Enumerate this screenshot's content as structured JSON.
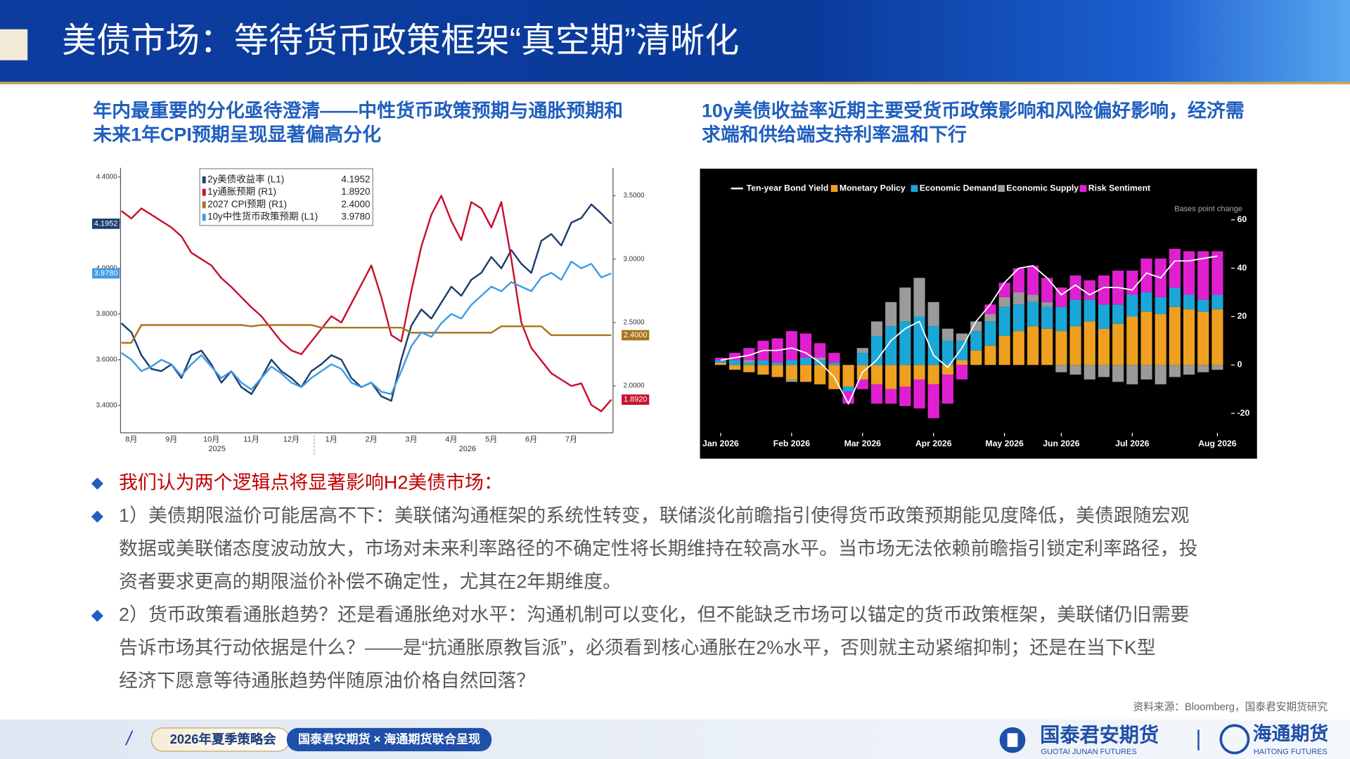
{
  "header": {
    "title": "美债市场：等待货币政策框架“真空期”清晰化"
  },
  "chart_data": [
    {
      "type": "line",
      "title": [
        "年内最重要的分化亟待澄清——中性货币政策预期与通胀预期和",
        "未来1年CPI预期呈现显著偏高分化"
      ],
      "categories": [
        null,
        "8月",
        null,
        null,
        null,
        "9月",
        null,
        null,
        null,
        "10月",
        null,
        null,
        null,
        "11月",
        null,
        null,
        null,
        "12月",
        null,
        null,
        null,
        "1月",
        null,
        null,
        null,
        "2月",
        null,
        null,
        null,
        "3月",
        null,
        null,
        null,
        "4月",
        null,
        null,
        null,
        "5月",
        null,
        null,
        null,
        "6月",
        null,
        null,
        null,
        "7月",
        null,
        null,
        null,
        null
      ],
      "year_labels": [
        "2025",
        "2026"
      ],
      "ylim": [
        3.28,
        4.44
      ],
      "yticks": [
        {
          "value": 3.4,
          "label": "3.4000"
        },
        {
          "value": 3.6,
          "label": "3.6000"
        },
        {
          "value": 3.8,
          "label": "3.8000"
        },
        {
          "value": 4.0,
          "label": "4.0000"
        },
        {
          "value": 4.2,
          "label": "4.2000"
        },
        {
          "value": 4.4,
          "label": "4.4000"
        }
      ],
      "y2lim": [
        1.63,
        3.72
      ],
      "y2ticks": [
        {
          "value": 2.0,
          "label": "2.0000"
        },
        {
          "value": 2.5,
          "label": "2.5000"
        },
        {
          "value": 3.0,
          "label": "3.0000"
        },
        {
          "value": 3.5,
          "label": "3.5000"
        }
      ],
      "series": [
        {
          "name": "2y美债收益率 (L1)",
          "color": "#1b3f6e",
          "axis": "y",
          "last_value_label": "4.1952",
          "values": [
            3.76,
            3.72,
            3.62,
            3.56,
            3.55,
            3.58,
            3.52,
            3.62,
            3.64,
            3.58,
            3.5,
            3.55,
            3.48,
            3.45,
            3.52,
            3.6,
            3.55,
            3.52,
            3.48,
            3.55,
            3.58,
            3.62,
            3.6,
            3.52,
            3.48,
            3.5,
            3.44,
            3.42,
            3.6,
            3.75,
            3.82,
            3.78,
            3.85,
            3.92,
            3.88,
            3.95,
            3.98,
            4.05,
            4.0,
            4.08,
            4.02,
            3.98,
            4.12,
            4.15,
            4.1,
            4.2,
            4.22,
            4.28,
            4.24,
            4.1952
          ]
        },
        {
          "name": "1y通胀预期 (R1)",
          "color": "#c8102e",
          "axis": "y2",
          "last_value_label": "1.8920",
          "values": [
            3.38,
            3.32,
            3.4,
            3.35,
            3.3,
            3.25,
            3.18,
            3.05,
            3.0,
            2.95,
            2.85,
            2.78,
            2.7,
            2.62,
            2.55,
            2.45,
            2.35,
            2.28,
            2.25,
            2.35,
            2.45,
            2.55,
            2.5,
            2.65,
            2.8,
            2.95,
            2.7,
            2.4,
            2.35,
            2.75,
            3.1,
            3.35,
            3.5,
            3.3,
            3.15,
            3.45,
            3.4,
            3.25,
            3.45,
            3.0,
            2.5,
            2.3,
            2.2,
            2.1,
            2.05,
            2.0,
            2.02,
            1.85,
            1.8,
            1.892
          ]
        },
        {
          "name": "2027 CPI预期 (R1)",
          "color": "#a8741a",
          "axis": "y2",
          "last_value_label": "2.4000",
          "values": [
            2.34,
            2.34,
            2.48,
            2.48,
            2.48,
            2.48,
            2.48,
            2.48,
            2.48,
            2.48,
            2.48,
            2.48,
            2.48,
            2.47,
            2.48,
            2.48,
            2.48,
            2.48,
            2.48,
            2.48,
            2.46,
            2.46,
            2.46,
            2.46,
            2.46,
            2.46,
            2.46,
            2.46,
            2.46,
            2.42,
            2.42,
            2.42,
            2.42,
            2.42,
            2.42,
            2.42,
            2.42,
            2.42,
            2.47,
            2.47,
            2.47,
            2.47,
            2.47,
            2.4,
            2.4,
            2.4,
            2.4,
            2.4,
            2.4,
            2.4
          ]
        },
        {
          "name": "10y中性货币政策预期 (L1)",
          "color": "#3f9be6",
          "axis": "y",
          "last_value_label": "3.9780",
          "values": [
            3.63,
            3.6,
            3.55,
            3.57,
            3.6,
            3.58,
            3.53,
            3.58,
            3.62,
            3.57,
            3.52,
            3.55,
            3.5,
            3.47,
            3.52,
            3.57,
            3.54,
            3.5,
            3.48,
            3.52,
            3.55,
            3.58,
            3.56,
            3.5,
            3.48,
            3.5,
            3.46,
            3.45,
            3.55,
            3.66,
            3.72,
            3.7,
            3.76,
            3.8,
            3.78,
            3.84,
            3.88,
            3.92,
            3.9,
            3.94,
            3.92,
            3.9,
            3.96,
            3.98,
            3.95,
            4.03,
            4.0,
            4.02,
            3.96,
            3.978
          ]
        }
      ]
    },
    {
      "type": "stacked-bar",
      "title": [
        "10y美债收益率近期主要受货币政策影响和风险偏好影响，经济需",
        "求端和供给端支持利率温和下行"
      ],
      "annotation": "Bases point change",
      "categories": [
        "Jan 2026",
        null,
        null,
        null,
        null,
        "Feb 2026",
        null,
        null,
        null,
        null,
        "Mar 2026",
        null,
        null,
        null,
        null,
        "Apr 2026",
        null,
        null,
        null,
        null,
        "May 2026",
        null,
        null,
        null,
        "Jun 2026",
        null,
        null,
        null,
        null,
        "Jul 2026",
        null,
        null,
        null,
        null,
        null,
        "Aug 2026"
      ],
      "ylim": [
        -27,
        63
      ],
      "yticks": [
        -20,
        0,
        20,
        40,
        60
      ],
      "series": [
        {
          "name": "Ten-year Bond Yield",
          "color": "#ffffff",
          "kind": "line",
          "values": [
            2,
            3,
            4,
            6,
            6,
            7,
            5,
            1,
            -5,
            -16,
            -3,
            2,
            10,
            15,
            18,
            4,
            -1,
            7,
            18,
            25,
            34,
            40,
            41,
            36,
            29,
            33,
            29,
            32,
            32,
            31,
            38,
            36,
            43,
            43,
            44,
            45
          ]
        },
        {
          "name": "Monetary Policy",
          "color": "#f0a020",
          "kind": "bar",
          "values": [
            1,
            -2,
            -3,
            -4,
            -5,
            -6,
            -7,
            -8,
            -10,
            -9,
            -6,
            -8,
            -10,
            -9,
            -6,
            -8,
            -4,
            2,
            6,
            8,
            12,
            14,
            16,
            15,
            14,
            16,
            18,
            15,
            17,
            20,
            22,
            21,
            24,
            23,
            22,
            23
          ]
        },
        {
          "name": "Economic Demand",
          "color": "#1aa7d8",
          "kind": "bar",
          "values": [
            1,
            2,
            1,
            2,
            1,
            2,
            3,
            2,
            1,
            -2,
            5,
            12,
            16,
            18,
            20,
            16,
            10,
            8,
            8,
            10,
            12,
            11,
            10,
            9,
            10,
            11,
            9,
            10,
            8,
            9,
            8,
            7,
            8,
            6,
            5,
            6
          ]
        },
        {
          "name": "Economic Supply",
          "color": "#9a9a9a",
          "kind": "bar",
          "values": [
            0,
            0,
            1,
            0,
            0,
            -1,
            0,
            1,
            0,
            0,
            2,
            6,
            10,
            14,
            16,
            10,
            5,
            3,
            4,
            3,
            4,
            5,
            3,
            2,
            -3,
            -4,
            -6,
            -5,
            -7,
            -8,
            -6,
            -8,
            -5,
            -4,
            -3,
            -2
          ]
        },
        {
          "name": "Risk Sentiment",
          "color": "#e020d0",
          "kind": "bar",
          "values": [
            1,
            3,
            5,
            8,
            10,
            12,
            10,
            6,
            4,
            -5,
            -4,
            -8,
            -6,
            -8,
            -12,
            -14,
            -12,
            -6,
            0,
            4,
            6,
            10,
            12,
            10,
            8,
            10,
            8,
            12,
            14,
            10,
            14,
            16,
            16,
            18,
            20,
            18
          ]
        }
      ]
    }
  ],
  "bullets": [
    {
      "color": "#c00000",
      "lines": [
        "我们认为两个逻辑点将显著影响H2美债市场："
      ]
    },
    {
      "color": "#595959",
      "lines": [
        "1）美债期限溢价可能居高不下：美联储沟通框架的系统性转变，联储淡化前瞻指引使得货币政策预期能见度降低，美债跟随宏观",
        "数据或美联储态度波动放大，市场对未来利率路径的不确定性将长期维持在较高水平。当市场无法依赖前瞻指引锁定利率路径，投",
        "资者要求更高的期限溢价补偿不确定性，尤其在2年期维度。"
      ]
    },
    {
      "color": "#595959",
      "lines": [
        "2）货币政策看通胀趋势？还是看通胀绝对水平：沟通机制可以变化，但不能缺乏市场可以锚定的货币政策框架，美联储仍旧需要",
        "告诉市场其行动依据是什么？——是“抗通胀原教旨派”，必须看到核心通胀在2%水平，否则就主动紧缩抑制；还是在当下K型",
        "经济下愿意等待通胀趋势伴随原油价格自然回落？"
      ]
    }
  ],
  "source": "资料来源：Bloomberg，国泰君安期货研究",
  "footer": {
    "event": "2026年夏季策略会",
    "joint": "国泰君安期货 × 海通期货联合呈现",
    "logo1": "国泰君安期货",
    "logo1_en": "GUOTAI JUNAN FUTURES",
    "logo2": "海通期货",
    "logo2_en": "HAITONG FUTURES"
  }
}
